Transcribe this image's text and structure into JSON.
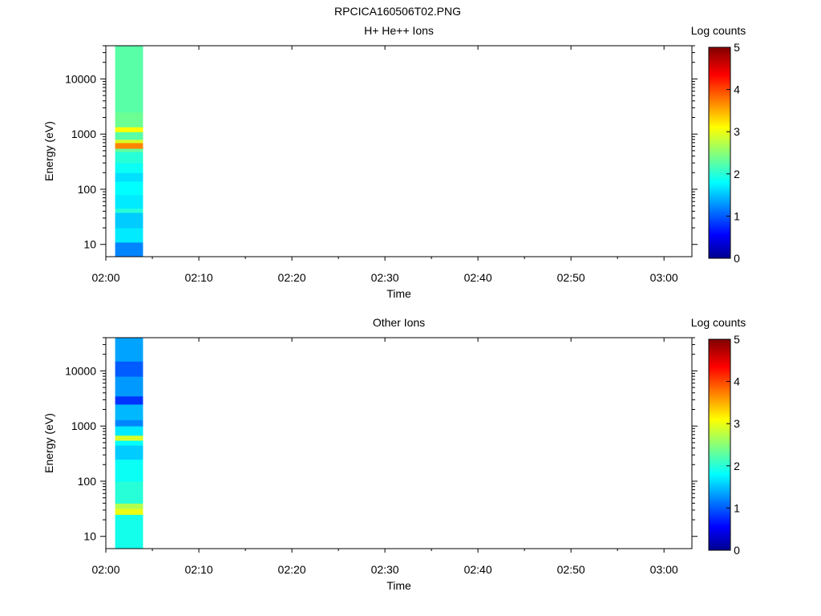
{
  "figure_title": "RPCICA160506T02.PNG",
  "colorbar": {
    "label": "Log counts",
    "min": 0,
    "max": 5,
    "ticks": [
      "0",
      "1",
      "2",
      "3",
      "4",
      "5"
    ],
    "colormap": "jet",
    "stops": [
      "#00008f",
      "#0000ff",
      "#00ffff",
      "#ffff00",
      "#ff0000",
      "#800000"
    ]
  },
  "chart_data": [
    {
      "type": "heatmap",
      "title": "H+ He++ Ions",
      "xlabel": "Time",
      "ylabel": "Energy (eV)",
      "xlim": [
        "02:00",
        "03:03"
      ],
      "ylim": [
        6,
        40000
      ],
      "yscale": "log",
      "x_ticks": [
        "02:00",
        "02:10",
        "02:20",
        "02:30",
        "02:40",
        "02:50",
        "03:00"
      ],
      "y_ticks": [
        "10",
        "100",
        "1000",
        "10000"
      ],
      "data_time_range": [
        "02:01",
        "02:04"
      ],
      "bins": [
        {
          "e_lo": 6,
          "e_hi": 11,
          "v": 1.2
        },
        {
          "e_lo": 11,
          "e_hi": 20,
          "v": 1.7
        },
        {
          "e_lo": 20,
          "e_hi": 38,
          "v": 1.55
        },
        {
          "e_lo": 38,
          "e_hi": 45,
          "v": 2.0
        },
        {
          "e_lo": 45,
          "e_hi": 80,
          "v": 1.7
        },
        {
          "e_lo": 80,
          "e_hi": 140,
          "v": 1.8
        },
        {
          "e_lo": 140,
          "e_hi": 200,
          "v": 1.65
        },
        {
          "e_lo": 200,
          "e_hi": 300,
          "v": 1.85
        },
        {
          "e_lo": 300,
          "e_hi": 480,
          "v": 2.0
        },
        {
          "e_lo": 480,
          "e_hi": 550,
          "v": 2.3
        },
        {
          "e_lo": 550,
          "e_hi": 700,
          "v": 3.7
        },
        {
          "e_lo": 700,
          "e_hi": 800,
          "v": 2.9
        },
        {
          "e_lo": 800,
          "e_hi": 1100,
          "v": 2.25
        },
        {
          "e_lo": 1100,
          "e_hi": 1350,
          "v": 3.1
        },
        {
          "e_lo": 1350,
          "e_hi": 2500,
          "v": 2.35
        },
        {
          "e_lo": 2500,
          "e_hi": 40000,
          "v": 2.25
        }
      ]
    },
    {
      "type": "heatmap",
      "title": "Other Ions",
      "xlabel": "Time",
      "ylabel": "Energy (eV)",
      "xlim": [
        "02:00",
        "03:03"
      ],
      "ylim": [
        6,
        40000
      ],
      "yscale": "log",
      "x_ticks": [
        "02:00",
        "02:10",
        "02:20",
        "02:30",
        "02:40",
        "02:50",
        "03:00"
      ],
      "y_ticks": [
        "10",
        "100",
        "1000",
        "10000"
      ],
      "data_time_range": [
        "02:01",
        "02:04"
      ],
      "bins": [
        {
          "e_lo": 6,
          "e_hi": 25,
          "v": 1.9
        },
        {
          "e_lo": 25,
          "e_hi": 32,
          "v": 3.0
        },
        {
          "e_lo": 32,
          "e_hi": 40,
          "v": 2.7
        },
        {
          "e_lo": 40,
          "e_hi": 100,
          "v": 2.0
        },
        {
          "e_lo": 100,
          "e_hi": 250,
          "v": 1.85
        },
        {
          "e_lo": 250,
          "e_hi": 450,
          "v": 1.55
        },
        {
          "e_lo": 450,
          "e_hi": 550,
          "v": 1.8
        },
        {
          "e_lo": 550,
          "e_hi": 680,
          "v": 2.9
        },
        {
          "e_lo": 680,
          "e_hi": 1000,
          "v": 1.7
        },
        {
          "e_lo": 1000,
          "e_hi": 1300,
          "v": 1.2
        },
        {
          "e_lo": 1300,
          "e_hi": 2500,
          "v": 1.45
        },
        {
          "e_lo": 2500,
          "e_hi": 3500,
          "v": 0.8
        },
        {
          "e_lo": 3500,
          "e_hi": 8000,
          "v": 1.3
        },
        {
          "e_lo": 8000,
          "e_hi": 15000,
          "v": 1.0
        },
        {
          "e_lo": 15000,
          "e_hi": 40000,
          "v": 1.35
        }
      ]
    }
  ]
}
